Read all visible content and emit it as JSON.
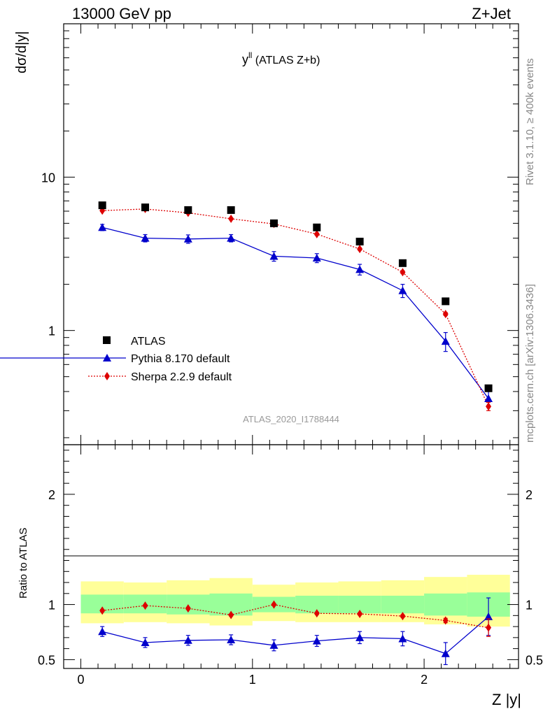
{
  "header": {
    "energy_label": "13000 GeV pp",
    "process_label": "Z+Jet"
  },
  "side_labels": {
    "rivet": "Rivet 3.1.10, ≥ 400k events",
    "mcplots": "mcplots.cern.ch [arXiv:1306.3436]"
  },
  "colors": {
    "atlas": "#000000",
    "pythia": "#0000cc",
    "sherpa": "#dd0000",
    "band_outer": "#ffff99",
    "band_inner": "#99ff99"
  },
  "chart_data": [
    {
      "type": "scatter",
      "panel": "main",
      "title_main": "y",
      "title_sup": "ll",
      "title_rest": " (ATLAS Z+b)",
      "ylabel": "dσ/d|y|",
      "yscale": "log",
      "ylim": [
        0.18,
        100
      ],
      "xlim": [
        -0.1,
        2.55
      ],
      "ytick_labels": [
        "10",
        "1"
      ],
      "analysis_label": "ATLAS_2020_I1788444",
      "legend_position": "bottom-left",
      "x": [
        0.125,
        0.375,
        0.625,
        0.875,
        1.125,
        1.375,
        1.625,
        1.875,
        2.125,
        2.375
      ],
      "x_edges": [
        0,
        0.25,
        0.5,
        0.75,
        1.0,
        1.25,
        1.5,
        1.75,
        2.0,
        2.25,
        2.5
      ],
      "series": [
        {
          "name": "ATLAS",
          "marker": "square",
          "values": [
            6.55,
            6.35,
            6.1,
            6.1,
            5.0,
            4.7,
            3.8,
            2.75,
            1.55,
            0.42
          ]
        },
        {
          "name": "Pythia 8.170 default",
          "marker": "triangle",
          "line": "solid",
          "values": [
            4.7,
            4.0,
            3.95,
            4.0,
            3.05,
            2.97,
            2.5,
            1.82,
            0.85,
            0.36
          ],
          "errors": [
            0.22,
            0.22,
            0.25,
            0.22,
            0.22,
            0.2,
            0.2,
            0.18,
            0.12,
            0.045
          ]
        },
        {
          "name": "Sherpa 2.2.9 default",
          "marker": "diamond",
          "line": "dotted",
          "values": [
            6.05,
            6.2,
            5.85,
            5.35,
            4.95,
            4.25,
            3.4,
            2.4,
            1.28,
            0.32
          ],
          "errors": [
            0.08,
            0.08,
            0.08,
            0.08,
            0.08,
            0.07,
            0.06,
            0.05,
            0.03,
            0.02
          ]
        }
      ]
    },
    {
      "type": "line",
      "panel": "ratio",
      "ylabel": "Ratio to ATLAS",
      "xlabel": "Z |y|",
      "ylim": [
        0.42,
        2.45
      ],
      "xlim": [
        -0.1,
        2.55
      ],
      "ytick_labels": [
        "2",
        "1",
        "0.5"
      ],
      "xtick_labels": [
        "0",
        "1",
        "2"
      ],
      "band_inner": {
        "lower": [
          0.92,
          0.92,
          0.91,
          0.9,
          0.93,
          0.92,
          0.92,
          0.92,
          0.9,
          0.89
        ],
        "upper": [
          1.09,
          1.09,
          1.09,
          1.1,
          1.07,
          1.08,
          1.08,
          1.08,
          1.1,
          1.11
        ]
      },
      "band_outer": {
        "lower": [
          0.83,
          0.84,
          0.83,
          0.81,
          0.85,
          0.84,
          0.84,
          0.84,
          0.82,
          0.8
        ],
        "upper": [
          1.21,
          1.2,
          1.22,
          1.24,
          1.18,
          1.2,
          1.21,
          1.22,
          1.25,
          1.27
        ]
      },
      "series": [
        {
          "name": "Pythia 8.170 default",
          "marker": "triangle",
          "values": [
            0.755,
            0.655,
            0.675,
            0.68,
            0.63,
            0.67,
            0.7,
            0.69,
            0.555,
            0.89
          ],
          "errors": [
            0.045,
            0.045,
            0.045,
            0.045,
            0.05,
            0.05,
            0.055,
            0.065,
            0.1,
            0.17
          ]
        },
        {
          "name": "Sherpa 2.2.9 default",
          "marker": "diamond",
          "values": [
            0.945,
            0.99,
            0.965,
            0.905,
            1.0,
            0.92,
            0.915,
            0.895,
            0.855,
            0.79
          ],
          "errors": [
            0.01,
            0.01,
            0.01,
            0.01,
            0.01,
            0.01,
            0.01,
            0.012,
            0.02,
            0.08
          ]
        }
      ]
    }
  ]
}
